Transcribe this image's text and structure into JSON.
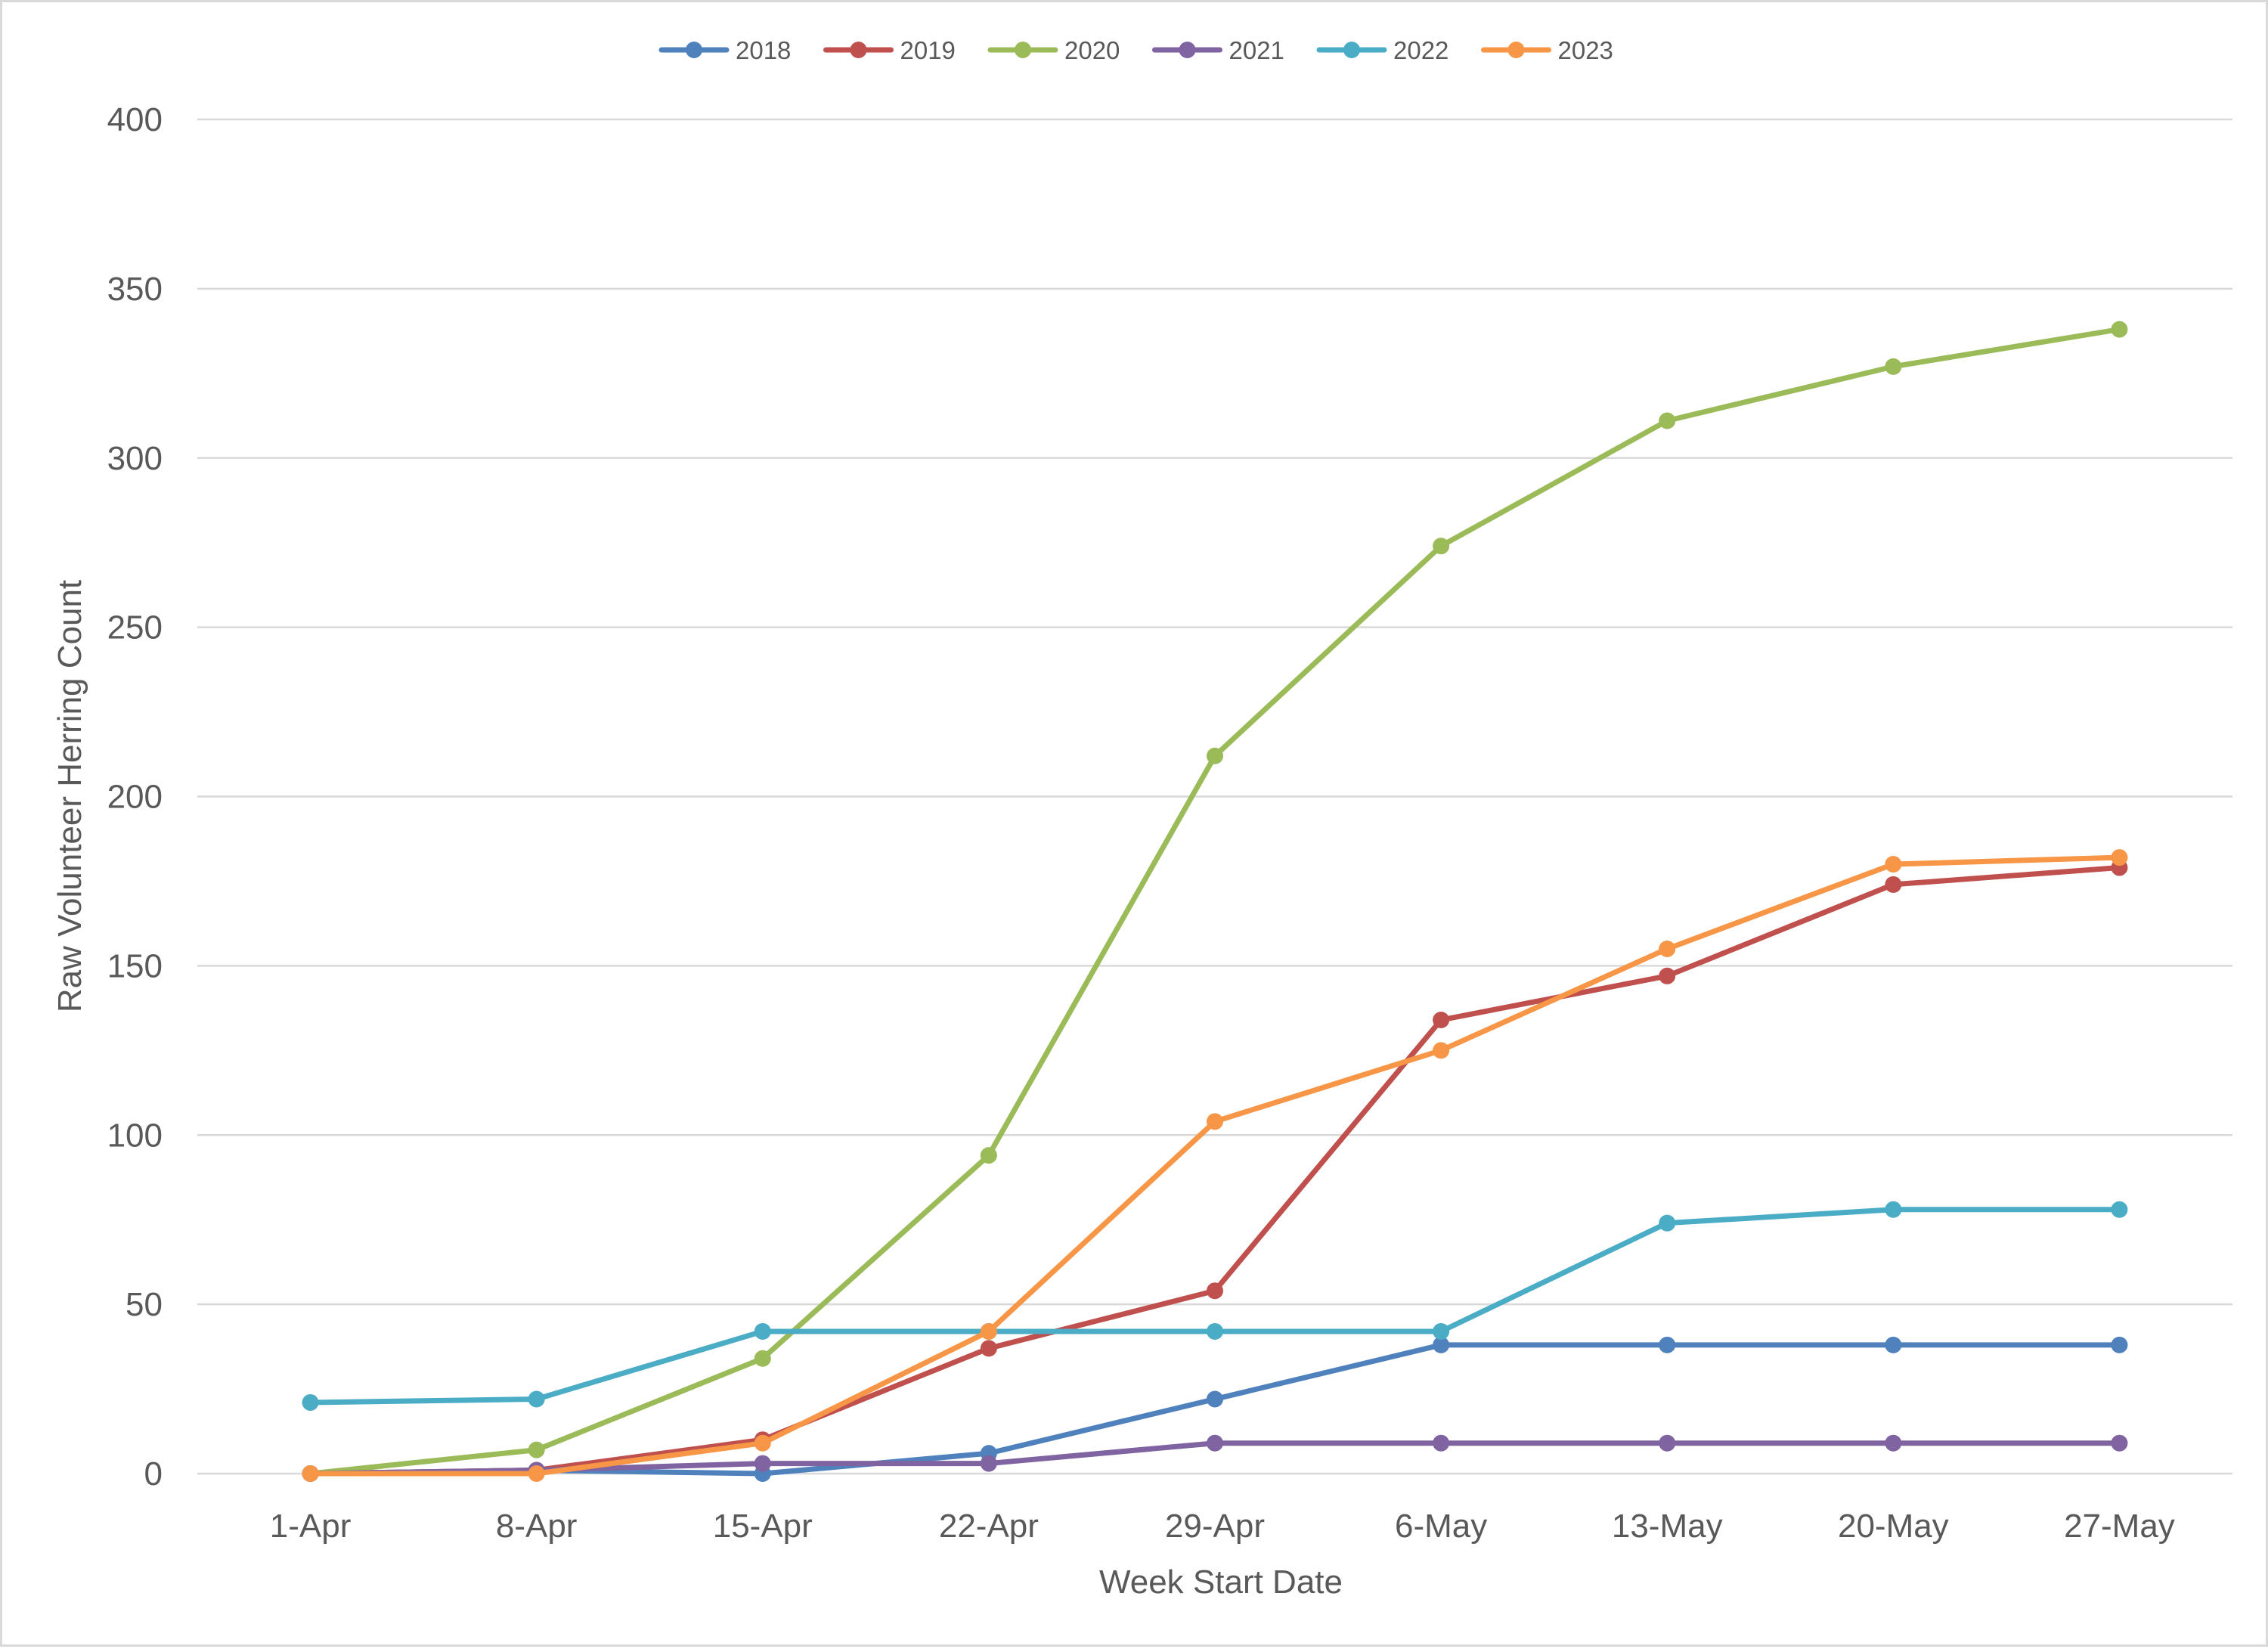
{
  "chart_data": {
    "type": "line",
    "title": "",
    "xlabel": "Week Start Date",
    "ylabel": "Raw Volunteer  Herring Count",
    "ylim": [
      0,
      400
    ],
    "yticks": [
      "0",
      "50",
      "100",
      "150",
      "200",
      "250",
      "300",
      "350",
      "400"
    ],
    "grid": "horizontal",
    "legend_position": "top",
    "categories": [
      "1-Apr",
      "8-Apr",
      "15-Apr",
      "22-Apr",
      "29-Apr",
      "6-May",
      "13-May",
      "20-May",
      "27-May"
    ],
    "series": [
      {
        "name": "2018",
        "color": "#4f81bd",
        "values": [
          0,
          1,
          0,
          6,
          22,
          38,
          38,
          38,
          38
        ]
      },
      {
        "name": "2019",
        "color": "#c0504d",
        "values": [
          0,
          1,
          10,
          37,
          54,
          134,
          147,
          174,
          179
        ]
      },
      {
        "name": "2020",
        "color": "#9bbb59",
        "values": [
          0,
          7,
          34,
          94,
          212,
          274,
          311,
          327,
          338
        ]
      },
      {
        "name": "2021",
        "color": "#8064a2",
        "values": [
          0,
          1,
          3,
          3,
          9,
          9,
          9,
          9,
          9
        ]
      },
      {
        "name": "2022",
        "color": "#4bacc6",
        "values": [
          21,
          22,
          42,
          42,
          42,
          42,
          74,
          78,
          78
        ]
      },
      {
        "name": "2023",
        "color": "#f79646",
        "values": [
          0,
          0,
          9,
          42,
          104,
          125,
          155,
          180,
          182
        ]
      }
    ]
  }
}
